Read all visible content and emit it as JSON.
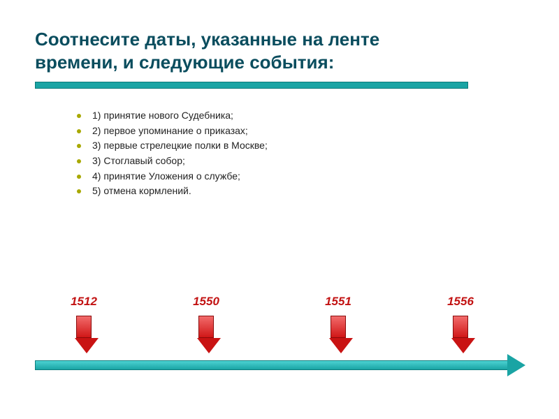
{
  "title_line1": "Соотнесите даты,  указанные на ленте",
  "title_line2": "времени, и следующие события:",
  "events": [
    "1) принятие нового Судебника;",
    "2) первое упоминание о приказах;",
    "3) первые стрелецкие полки в Москве;",
    "3) Стоглавый собор;",
    "4) принятие Уложения о службе;",
    "5) отмена кормлений."
  ],
  "timeline": {
    "years": [
      {
        "label": "1512",
        "pos_pct": 10
      },
      {
        "label": "1550",
        "pos_pct": 35
      },
      {
        "label": "1551",
        "pos_pct": 62
      },
      {
        "label": "1556",
        "pos_pct": 87
      }
    ],
    "year_color": "#c21212",
    "year_fontsize": 17,
    "arrow_fill": "#d01717",
    "arrow_border": "#8a0a0a",
    "bar_color": "#1aa4a4",
    "bar_border": "#0d7d7d",
    "underline_color": "#1aa4a4"
  },
  "colors": {
    "title_color": "#0a4d5e",
    "bullet_color": "#a8a800",
    "background": "#ffffff"
  }
}
